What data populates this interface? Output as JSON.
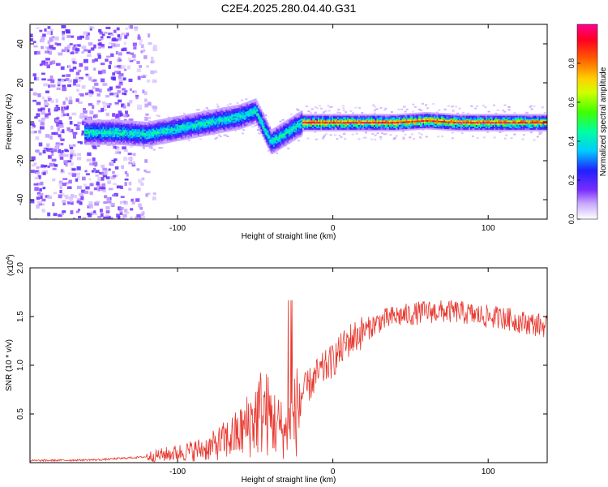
{
  "title": "C2E4.2025.280.04.40.G31",
  "chart_data": [
    {
      "type": "heatmap",
      "xlabel": "Height of straight line (km)",
      "ylabel": "Frequency (Hz)",
      "xlim": [
        -195,
        138
      ],
      "ylim": [
        -50,
        50
      ],
      "xticks": [
        -100,
        0,
        100
      ],
      "yticks": [
        -40,
        -20,
        0,
        20,
        40
      ],
      "colorbar": {
        "label": "Normalized spectral amplitude",
        "range": [
          0,
          1
        ],
        "ticks": [
          0.0,
          0.2,
          0.4,
          0.6,
          0.8
        ]
      },
      "ridge": {
        "x": [
          -160,
          -140,
          -120,
          -100,
          -80,
          -60,
          -50,
          -40,
          -30,
          -20,
          0,
          20,
          40,
          60,
          80,
          100,
          120,
          138
        ],
        "y": [
          -5,
          -5,
          -6,
          -3,
          0,
          3,
          6,
          -10,
          -5,
          0,
          0,
          0,
          0,
          1,
          0,
          0,
          0,
          0
        ]
      }
    },
    {
      "type": "line",
      "xlabel": "Height of straight line (km)",
      "ylabel": "SNR (10 * v/v)",
      "multiplier": "(x10",
      "multiplier_exp": "4",
      "multiplier_close": ")",
      "xlim": [
        -195,
        138
      ],
      "ylim": [
        0,
        2.0
      ],
      "xticks": [
        -100,
        0,
        100
      ],
      "yticks": [
        0.5,
        1.0,
        1.5,
        2.0
      ],
      "yticklabels": [
        "0.5",
        "1.0",
        "1.5",
        "2.0"
      ],
      "color": "#e8372e",
      "series": [
        {
          "name": "SNR",
          "x": [
            -195,
            -150,
            -120,
            -100,
            -80,
            -60,
            -45,
            -40,
            -30,
            -25,
            -20,
            -10,
            0,
            10,
            20,
            30,
            40,
            50,
            60,
            70,
            80,
            90,
            100,
            110,
            120,
            130,
            138
          ],
          "y": [
            0.02,
            0.03,
            0.06,
            0.1,
            0.15,
            0.3,
            0.55,
            0.45,
            0.3,
            0.45,
            0.7,
            0.9,
            1.05,
            1.25,
            1.35,
            1.45,
            1.5,
            1.52,
            1.55,
            1.55,
            1.55,
            1.52,
            1.5,
            1.48,
            1.45,
            1.42,
            1.4
          ]
        }
      ]
    }
  ]
}
